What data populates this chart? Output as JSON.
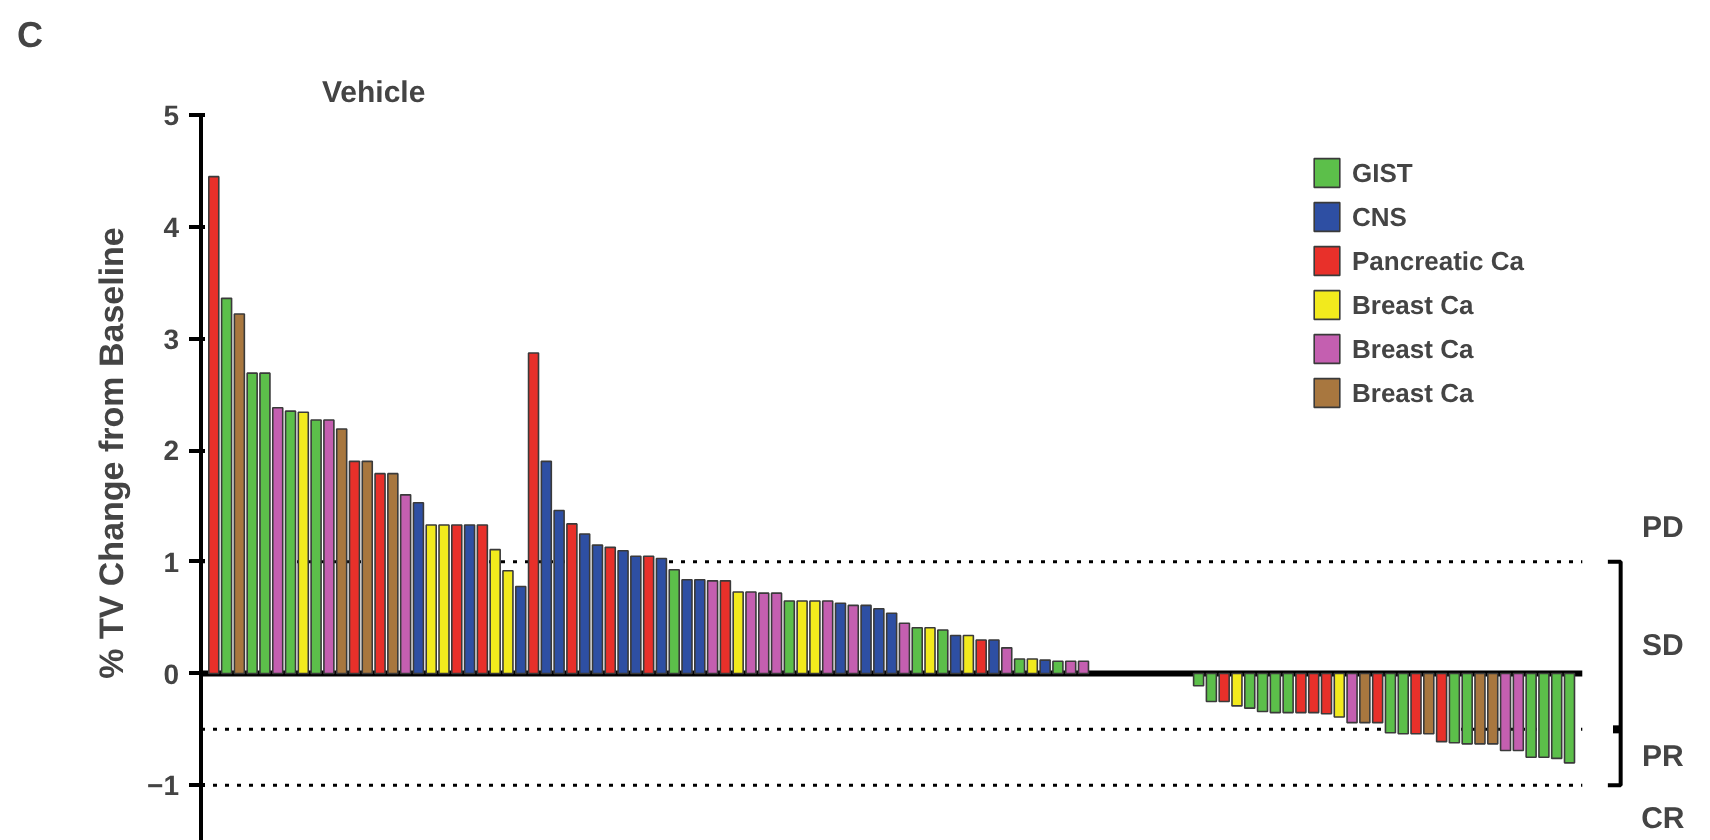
{
  "chart_data": {
    "type": "bar",
    "ylabel": "% TV Change from Baseline",
    "categories": [
      null,
      null,
      null,
      null,
      null,
      null,
      null,
      null,
      null,
      null,
      null,
      null,
      null,
      null,
      null,
      null,
      null,
      null,
      null,
      null,
      null,
      null,
      null,
      null,
      null,
      null,
      null,
      null,
      null,
      null,
      null,
      null,
      null,
      null,
      null,
      null,
      null,
      null,
      null,
      null,
      null,
      null,
      null,
      null,
      null,
      null,
      null,
      null,
      null,
      null,
      null,
      null,
      null,
      null,
      null,
      null,
      null,
      null,
      null,
      null,
      null,
      null,
      null,
      null,
      null,
      null,
      null,
      null,
      null,
      null,
      null,
      null,
      null,
      null,
      null,
      null,
      null,
      null,
      null,
      null,
      null,
      null,
      null,
      null,
      null,
      null,
      null,
      null,
      null,
      null,
      null,
      null,
      null,
      null,
      null,
      null,
      null,
      null,
      null,
      null,
      null,
      null,
      null,
      null,
      null,
      null,
      null
    ],
    "series": [
      {
        "name": "GIST",
        "color": "#5cbf4a",
        "values": [
          null,
          3.36,
          null,
          2.69,
          2.69,
          null,
          2.35,
          null,
          2.27,
          null,
          null,
          null,
          null,
          null,
          null,
          null,
          null,
          null,
          null,
          null,
          null,
          null,
          null,
          null,
          null,
          null,
          null,
          null,
          null,
          null,
          null,
          null,
          null,
          null,
          null,
          null,
          0.93,
          null,
          null,
          null,
          null,
          null,
          null,
          null,
          null,
          0.65,
          null,
          null,
          null,
          null,
          null,
          null,
          null,
          null,
          null,
          0.41,
          null,
          0.39,
          null,
          null,
          null,
          null,
          null,
          0.13,
          null,
          null,
          0.11,
          null,
          null,
          null,
          null,
          null,
          null,
          null,
          null,
          null,
          null,
          -0.11,
          -0.25,
          null,
          null,
          -0.31,
          -0.34,
          -0.35,
          -0.35,
          null,
          null,
          null,
          null,
          null,
          null,
          null,
          -0.53,
          -0.54,
          null,
          null,
          null,
          -0.62,
          -0.63,
          null,
          null,
          null,
          null,
          -0.75,
          -0.75,
          -0.76,
          -0.8
        ]
      },
      {
        "name": "CNS",
        "color": "#2e4fa3",
        "values": [
          null,
          null,
          null,
          null,
          null,
          null,
          null,
          null,
          null,
          null,
          null,
          null,
          null,
          null,
          null,
          null,
          1.53,
          null,
          null,
          null,
          1.33,
          null,
          null,
          null,
          0.78,
          null,
          1.9,
          1.46,
          null,
          1.25,
          1.15,
          null,
          1.1,
          1.05,
          null,
          1.03,
          null,
          0.84,
          0.84,
          null,
          null,
          null,
          null,
          null,
          null,
          null,
          null,
          null,
          null,
          0.63,
          null,
          0.61,
          0.58,
          0.54,
          null,
          null,
          null,
          null,
          0.34,
          null,
          null,
          0.3,
          null,
          null,
          null,
          0.12,
          null,
          null,
          null,
          null,
          null,
          null,
          null,
          null,
          null,
          null,
          null,
          null,
          null,
          null,
          null,
          null,
          null,
          null,
          null,
          null,
          null,
          null,
          null,
          null,
          null,
          null,
          null,
          null,
          null,
          null,
          null,
          null,
          null,
          null,
          null,
          null,
          null,
          null,
          null,
          null,
          null
        ]
      },
      {
        "name": "Pancreatic Ca",
        "color": "#e8302a",
        "values": [
          4.45,
          null,
          null,
          null,
          null,
          null,
          null,
          null,
          null,
          null,
          null,
          1.9,
          null,
          1.79,
          null,
          null,
          null,
          null,
          null,
          1.33,
          null,
          1.33,
          null,
          null,
          null,
          2.87,
          null,
          null,
          1.34,
          null,
          null,
          1.13,
          null,
          null,
          1.05,
          null,
          null,
          null,
          null,
          null,
          0.83,
          null,
          null,
          null,
          null,
          null,
          null,
          null,
          null,
          null,
          null,
          null,
          null,
          null,
          null,
          null,
          null,
          null,
          null,
          null,
          0.3,
          null,
          null,
          null,
          null,
          null,
          null,
          null,
          null,
          null,
          null,
          null,
          null,
          null,
          null,
          null,
          null,
          null,
          null,
          -0.25,
          null,
          null,
          null,
          null,
          null,
          -0.35,
          -0.35,
          -0.36,
          null,
          null,
          null,
          -0.44,
          null,
          null,
          -0.54,
          null,
          -0.61,
          null,
          null,
          null,
          null,
          null,
          null,
          null,
          null,
          null,
          null
        ]
      },
      {
        "name": "Breast Ca",
        "color": "#f2ea1d",
        "values": [
          null,
          null,
          null,
          null,
          null,
          null,
          null,
          2.34,
          null,
          null,
          null,
          null,
          null,
          null,
          null,
          null,
          null,
          1.33,
          1.33,
          null,
          null,
          null,
          1.11,
          0.92,
          null,
          null,
          null,
          null,
          null,
          null,
          null,
          null,
          null,
          null,
          null,
          null,
          null,
          null,
          null,
          null,
          null,
          0.73,
          null,
          null,
          null,
          null,
          0.65,
          0.65,
          null,
          null,
          null,
          null,
          null,
          null,
          null,
          null,
          0.41,
          null,
          null,
          0.34,
          null,
          null,
          null,
          null,
          0.13,
          null,
          null,
          null,
          null,
          null,
          null,
          null,
          null,
          null,
          null,
          null,
          null,
          null,
          null,
          null,
          -0.29,
          null,
          null,
          null,
          null,
          null,
          null,
          null,
          -0.39,
          null,
          null,
          null,
          null,
          null,
          null,
          null,
          null,
          null,
          null,
          null,
          null,
          null,
          null,
          null,
          null,
          null,
          null
        ]
      },
      {
        "name": "Breast Ca",
        "color": "#c45fb0",
        "values": [
          null,
          null,
          null,
          null,
          null,
          2.38,
          null,
          null,
          null,
          2.27,
          null,
          null,
          null,
          null,
          null,
          1.6,
          null,
          null,
          null,
          null,
          null,
          null,
          null,
          null,
          null,
          null,
          null,
          null,
          null,
          null,
          null,
          null,
          null,
          null,
          null,
          null,
          null,
          null,
          null,
          0.83,
          null,
          null,
          0.73,
          0.72,
          0.72,
          null,
          null,
          null,
          0.65,
          null,
          0.61,
          null,
          null,
          null,
          0.45,
          null,
          null,
          null,
          null,
          null,
          null,
          null,
          0.23,
          null,
          null,
          null,
          null,
          0.11,
          0.11,
          null,
          null,
          null,
          null,
          null,
          null,
          null,
          null,
          null,
          null,
          null,
          null,
          null,
          null,
          null,
          null,
          null,
          null,
          null,
          null,
          -0.44,
          null,
          null,
          null,
          null,
          null,
          null,
          null,
          null,
          null,
          null,
          null,
          -0.69,
          -0.69,
          null,
          null,
          null,
          null
        ]
      },
      {
        "name": "Breast Ca",
        "color": "#a8773f",
        "values": [
          null,
          null,
          3.22,
          null,
          null,
          null,
          null,
          null,
          null,
          null,
          2.19,
          null,
          1.9,
          null,
          1.79,
          null,
          null,
          null,
          null,
          null,
          null,
          null,
          null,
          null,
          null,
          null,
          null,
          null,
          null,
          null,
          null,
          null,
          null,
          null,
          null,
          null,
          null,
          null,
          null,
          null,
          null,
          null,
          null,
          null,
          null,
          null,
          null,
          null,
          null,
          null,
          null,
          null,
          null,
          null,
          null,
          null,
          null,
          null,
          null,
          null,
          null,
          null,
          null,
          null,
          null,
          null,
          null,
          null,
          null,
          null,
          null,
          null,
          null,
          null,
          null,
          null,
          null,
          null,
          null,
          null,
          null,
          null,
          null,
          null,
          null,
          null,
          null,
          null,
          null,
          null,
          -0.44,
          null,
          null,
          null,
          null,
          -0.54,
          null,
          null,
          null,
          -0.63,
          -0.63,
          null,
          null,
          null,
          null,
          null,
          null
        ]
      }
    ],
    "ylim": [
      -1.5,
      5
    ],
    "yticks": [
      -1,
      0,
      1,
      2,
      3,
      4,
      5
    ],
    "ref_lines": [
      {
        "axis": "y",
        "value": 1,
        "line_style": "dotted",
        "color": "#000000"
      },
      {
        "axis": "y",
        "value": -0.5,
        "line_style": "dotted",
        "color": "#000000"
      },
      {
        "axis": "y",
        "value": -1,
        "line_style": "dotted",
        "color": "#000000"
      }
    ],
    "annotations": [
      "C",
      "Vehicle",
      "PD",
      "SD",
      "PR",
      "CR"
    ],
    "legend": "top right",
    "grid": false,
    "tick_labels": "y"
  }
}
